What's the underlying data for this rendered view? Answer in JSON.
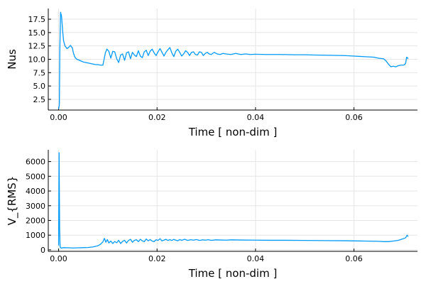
{
  "colors": {
    "series": "#009AF9",
    "grid": "#E5E5E5",
    "axis": "#000000"
  },
  "chart_data": [
    {
      "type": "line",
      "xlabel": "Time [ non-dim ]",
      "ylabel": "Nus",
      "xlim": [
        -0.0021,
        0.0729
      ],
      "ylim": [
        0.5,
        19.5
      ],
      "xticks": [
        0.0,
        0.02,
        0.04,
        0.06
      ],
      "xtick_labels": [
        "0.00",
        "0.02",
        "0.04",
        "0.06"
      ],
      "yticks": [
        2.5,
        5.0,
        7.5,
        10.0,
        12.5,
        15.0,
        17.5
      ],
      "ytick_labels": [
        "2.5",
        "5.0",
        "7.5",
        "10.0",
        "12.5",
        "15.0",
        "17.5"
      ],
      "grid": true,
      "legend": false,
      "series": [
        {
          "x": [
            0.0,
            0.00015,
            0.00025,
            0.0004,
            0.0006,
            0.0008,
            0.001,
            0.0013,
            0.0017,
            0.002,
            0.0024,
            0.0028,
            0.003,
            0.0033,
            0.0037,
            0.004,
            0.0045,
            0.005,
            0.0055,
            0.006,
            0.0065,
            0.007,
            0.0075,
            0.008,
            0.0085,
            0.009,
            0.0095,
            0.0098,
            0.0102,
            0.0106,
            0.011,
            0.0114,
            0.0118,
            0.0122,
            0.0126,
            0.013,
            0.0134,
            0.0138,
            0.0142,
            0.0146,
            0.015,
            0.0154,
            0.0158,
            0.0162,
            0.0166,
            0.017,
            0.0174,
            0.0178,
            0.0182,
            0.0186,
            0.019,
            0.0194,
            0.0198,
            0.0202,
            0.0206,
            0.021,
            0.0214,
            0.0218,
            0.0222,
            0.0226,
            0.023,
            0.0234,
            0.0238,
            0.0242,
            0.0246,
            0.025,
            0.0254,
            0.0258,
            0.0262,
            0.0266,
            0.027,
            0.0274,
            0.0278,
            0.0282,
            0.0286,
            0.029,
            0.0294,
            0.0298,
            0.0302,
            0.0306,
            0.031,
            0.0316,
            0.0322,
            0.0328,
            0.0334,
            0.034,
            0.035,
            0.036,
            0.037,
            0.038,
            0.039,
            0.04,
            0.042,
            0.045,
            0.048,
            0.05,
            0.052,
            0.055,
            0.058,
            0.06,
            0.062,
            0.064,
            0.065,
            0.066,
            0.0665,
            0.067,
            0.0675,
            0.068,
            0.0685,
            0.069,
            0.0695,
            0.07,
            0.0703,
            0.0705,
            0.0707,
            0.071
          ],
          "y": [
            0.7,
            1.5,
            12.0,
            18.8,
            18.0,
            15.5,
            13.5,
            12.5,
            12.0,
            12.2,
            12.6,
            12.1,
            11.2,
            10.4,
            10.0,
            9.9,
            9.7,
            9.5,
            9.4,
            9.3,
            9.2,
            9.1,
            9.0,
            9.0,
            8.9,
            8.9,
            11.2,
            11.9,
            11.5,
            10.2,
            11.5,
            11.4,
            10.1,
            9.4,
            10.8,
            11.0,
            9.8,
            11.2,
            11.4,
            10.1,
            11.3,
            10.8,
            10.5,
            11.6,
            10.6,
            10.3,
            11.4,
            11.7,
            10.7,
            11.5,
            11.9,
            11.2,
            10.7,
            11.4,
            12.0,
            11.3,
            10.6,
            11.3,
            11.8,
            12.2,
            11.2,
            10.5,
            11.5,
            11.9,
            11.3,
            10.6,
            11.0,
            11.6,
            11.3,
            10.7,
            11.3,
            11.4,
            10.9,
            10.8,
            11.4,
            11.3,
            10.7,
            11.1,
            11.3,
            11.0,
            10.9,
            11.3,
            11.0,
            10.9,
            11.1,
            11.0,
            10.9,
            11.1,
            10.9,
            11.0,
            10.9,
            10.95,
            10.9,
            10.9,
            10.85,
            10.85,
            10.8,
            10.75,
            10.7,
            10.6,
            10.5,
            10.4,
            10.2,
            10.1,
            9.7,
            9.1,
            8.6,
            8.7,
            8.6,
            8.8,
            8.9,
            8.9,
            9.0,
            9.3,
            10.4,
            10.1
          ]
        }
      ]
    },
    {
      "type": "line",
      "xlabel": "Time [ non-dim ]",
      "ylabel": "V_{RMS}",
      "xlim": [
        -0.0021,
        0.0729
      ],
      "ylim": [
        -100,
        6800
      ],
      "xticks": [
        0.0,
        0.02,
        0.04,
        0.06
      ],
      "xtick_labels": [
        "0.00",
        "0.02",
        "0.04",
        "0.06"
      ],
      "yticks": [
        0,
        1000,
        2000,
        3000,
        4000,
        5000,
        6000
      ],
      "ytick_labels": [
        "0",
        "1000",
        "2000",
        "3000",
        "4000",
        "5000",
        "6000"
      ],
      "grid": true,
      "legend": false,
      "series": [
        {
          "x": [
            0.0,
            0.0001,
            0.0002,
            0.0003,
            0.0005,
            0.0008,
            0.001,
            0.002,
            0.003,
            0.004,
            0.005,
            0.006,
            0.007,
            0.008,
            0.0085,
            0.009,
            0.0093,
            0.0096,
            0.0099,
            0.0102,
            0.0106,
            0.011,
            0.0114,
            0.0118,
            0.0122,
            0.0126,
            0.013,
            0.0134,
            0.0138,
            0.0142,
            0.0146,
            0.015,
            0.0154,
            0.0158,
            0.0162,
            0.0166,
            0.017,
            0.0174,
            0.0178,
            0.0182,
            0.0186,
            0.019,
            0.0194,
            0.0198,
            0.0202,
            0.0206,
            0.021,
            0.0214,
            0.0218,
            0.0222,
            0.0226,
            0.023,
            0.0234,
            0.0238,
            0.0242,
            0.0246,
            0.025,
            0.0256,
            0.0262,
            0.0268,
            0.0274,
            0.028,
            0.0286,
            0.0292,
            0.0298,
            0.0304,
            0.031,
            0.032,
            0.033,
            0.034,
            0.035,
            0.037,
            0.04,
            0.043,
            0.046,
            0.05,
            0.054,
            0.058,
            0.062,
            0.065,
            0.066,
            0.067,
            0.068,
            0.069,
            0.0695,
            0.07,
            0.0705,
            0.0708,
            0.071
          ],
          "y": [
            300,
            6600,
            1500,
            200,
            120,
            140,
            150,
            140,
            130,
            140,
            150,
            160,
            200,
            280,
            380,
            550,
            780,
            520,
            700,
            470,
            600,
            430,
            570,
            480,
            650,
            430,
            580,
            650,
            470,
            640,
            720,
            520,
            650,
            690,
            560,
            720,
            610,
            560,
            740,
            620,
            700,
            600,
            560,
            690,
            640,
            760,
            610,
            660,
            720,
            640,
            700,
            640,
            710,
            660,
            620,
            700,
            650,
            720,
            640,
            690,
            660,
            700,
            640,
            680,
            660,
            690,
            650,
            680,
            670,
            660,
            680,
            670,
            660,
            650,
            650,
            640,
            630,
            620,
            600,
            580,
            560,
            560,
            600,
            650,
            700,
            760,
            820,
            1000,
            900
          ]
        }
      ]
    }
  ]
}
